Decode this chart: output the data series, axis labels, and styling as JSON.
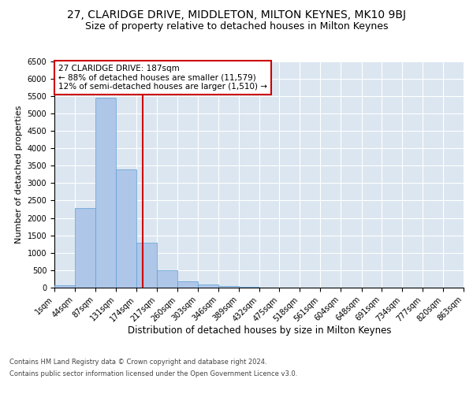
{
  "title": "27, CLARIDGE DRIVE, MIDDLETON, MILTON KEYNES, MK10 9BJ",
  "subtitle": "Size of property relative to detached houses in Milton Keynes",
  "xlabel": "Distribution of detached houses by size in Milton Keynes",
  "ylabel": "Number of detached properties",
  "bin_edges": [
    1,
    44,
    87,
    131,
    174,
    217,
    260,
    303,
    346,
    389,
    432,
    475,
    518,
    561,
    604,
    648,
    691,
    734,
    777,
    820,
    863
  ],
  "bar_heights": [
    60,
    2280,
    5440,
    3400,
    1290,
    490,
    175,
    95,
    55,
    30,
    10,
    5,
    3,
    2,
    1,
    1,
    0,
    0,
    0,
    0
  ],
  "bar_color": "#aec6e8",
  "bar_edgecolor": "#5a9fd4",
  "property_size": 187,
  "vline_x": 187,
  "vline_color": "#cc0000",
  "annotation_text": "27 CLARIDGE DRIVE: 187sqm\n← 88% of detached houses are smaller (11,579)\n12% of semi-detached houses are larger (1,510) →",
  "annotation_box_edgecolor": "#cc0000",
  "annotation_box_facecolor": "white",
  "footer_line1": "Contains HM Land Registry data © Crown copyright and database right 2024.",
  "footer_line2": "Contains public sector information licensed under the Open Government Licence v3.0.",
  "ylim": [
    0,
    6500
  ],
  "yticks": [
    0,
    500,
    1000,
    1500,
    2000,
    2500,
    3000,
    3500,
    4000,
    4500,
    5000,
    5500,
    6000,
    6500
  ],
  "bg_color": "#dce6f1",
  "fig_bg_color": "#ffffff",
  "title_fontsize": 10,
  "subtitle_fontsize": 9,
  "tick_label_fontsize": 7,
  "ylabel_fontsize": 8,
  "xlabel_fontsize": 8.5,
  "annotation_fontsize": 7.5,
  "footer_fontsize": 6
}
